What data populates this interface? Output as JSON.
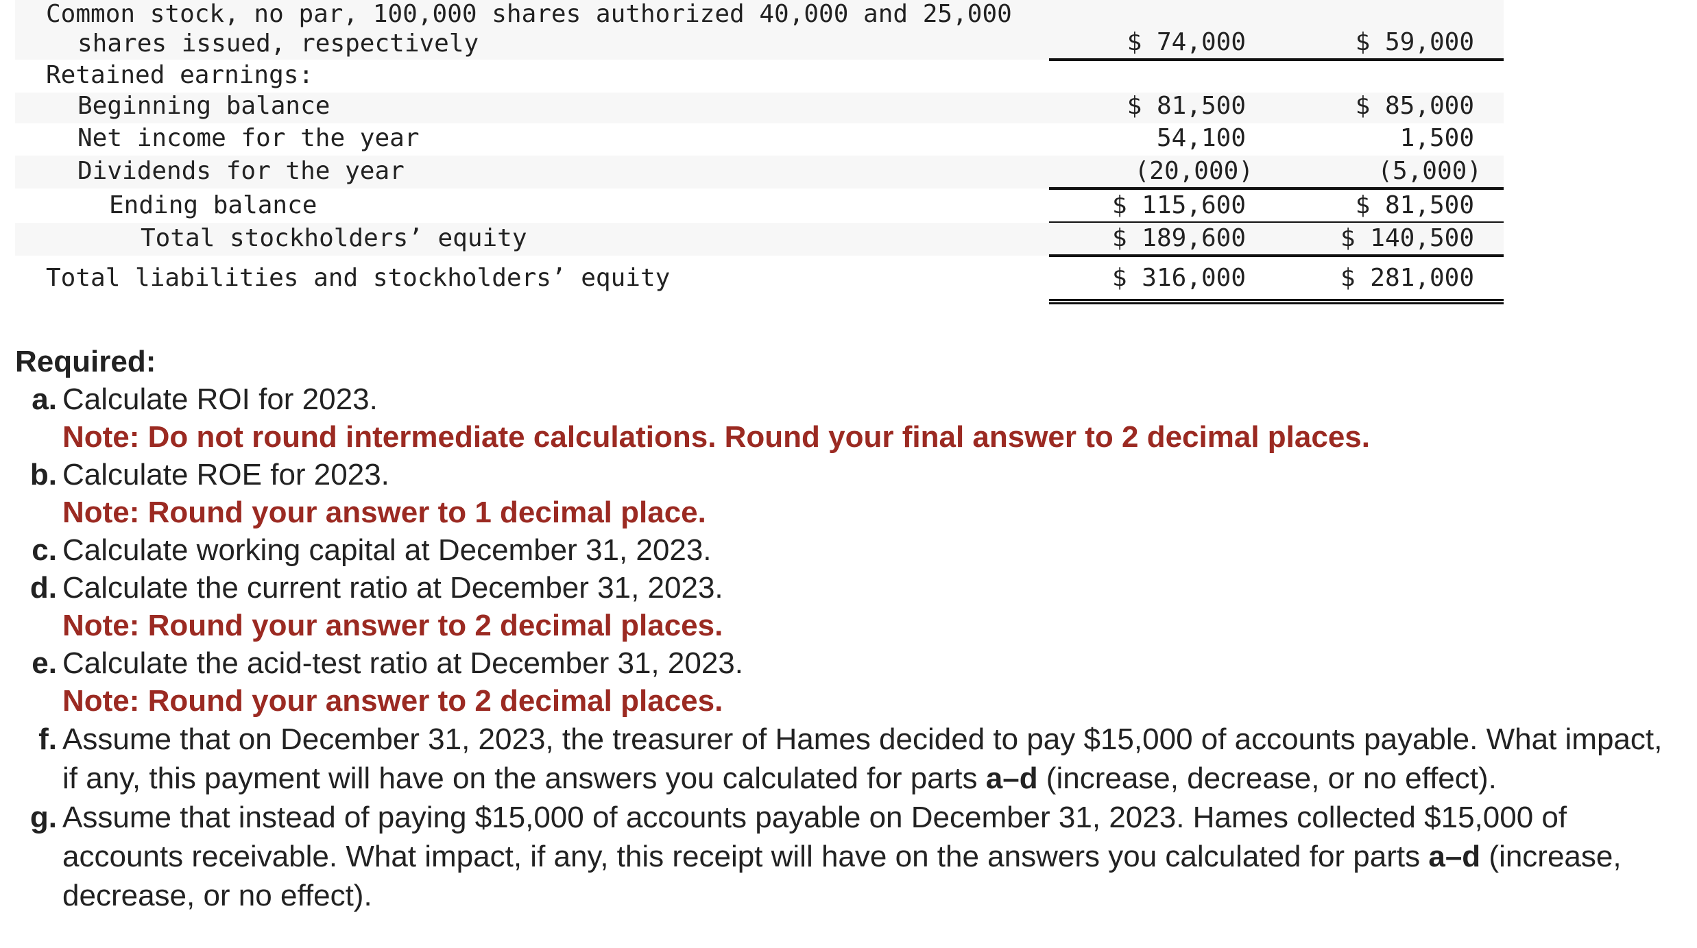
{
  "table": {
    "rows": [
      {
        "label_line1": "Common stock, no par, 100,000 shares authorized 40,000 and 25,000",
        "label_line2": "shares issued, respectively",
        "v2023": "$ 74,000",
        "v2022": "$ 59,000"
      },
      {
        "label": "Retained earnings:"
      },
      {
        "label": "Beginning balance",
        "v2023": "$ 81,500",
        "v2022": "$ 85,000"
      },
      {
        "label": "Net income for the year",
        "v2023": "54,100",
        "v2022": "1,500"
      },
      {
        "label": "Dividends for the year",
        "v2023": "(20,000)",
        "v2022": "(5,000)"
      },
      {
        "label": "Ending balance",
        "v2023": "$ 115,600",
        "v2022": "$ 81,500"
      },
      {
        "label": "Total stockholders’ equity",
        "v2023": "$ 189,600",
        "v2022": "$ 140,500"
      },
      {
        "label": "Total liabilities and stockholders’ equity",
        "v2023": "$ 316,000",
        "v2022": "$ 281,000"
      }
    ]
  },
  "required": {
    "heading": "Required:",
    "items": [
      {
        "letter": "a.",
        "text": "Calculate ROI for 2023.",
        "note": "Note: Do not round intermediate calculations. Round your final answer to 2 decimal places."
      },
      {
        "letter": "b.",
        "text": "Calculate ROE for 2023.",
        "note": "Note: Round your answer to 1 decimal place."
      },
      {
        "letter": "c.",
        "text": "Calculate working capital at December 31, 2023."
      },
      {
        "letter": "d.",
        "text": "Calculate the current ratio at December 31, 2023.",
        "note": "Note: Round your answer to 2 decimal places."
      },
      {
        "letter": "e.",
        "text": "Calculate the acid-test ratio at December 31, 2023.",
        "note": "Note: Round your answer to 2 decimal places."
      },
      {
        "letter": "f.",
        "text_pre": "Assume that on December 31, 2023, the treasurer of Hames decided to pay $15,000 of accounts payable. What impact, if any, this payment will have on the answers you calculated for parts ",
        "bold": "a–d",
        "text_post": " (increase, decrease, or no effect)."
      },
      {
        "letter": "g.",
        "text_pre": "Assume that instead of paying $15,000 of accounts payable on December 31, 2023. Hames collected $15,000 of accounts receivable. What impact, if any, this receipt will have on the answers you calculated for parts ",
        "bold": "a–d",
        "text_post": " (increase, decrease, or no effect)."
      }
    ]
  },
  "colors": {
    "note_red": "#9b2a22",
    "row_shade": "#f7f7f7"
  }
}
